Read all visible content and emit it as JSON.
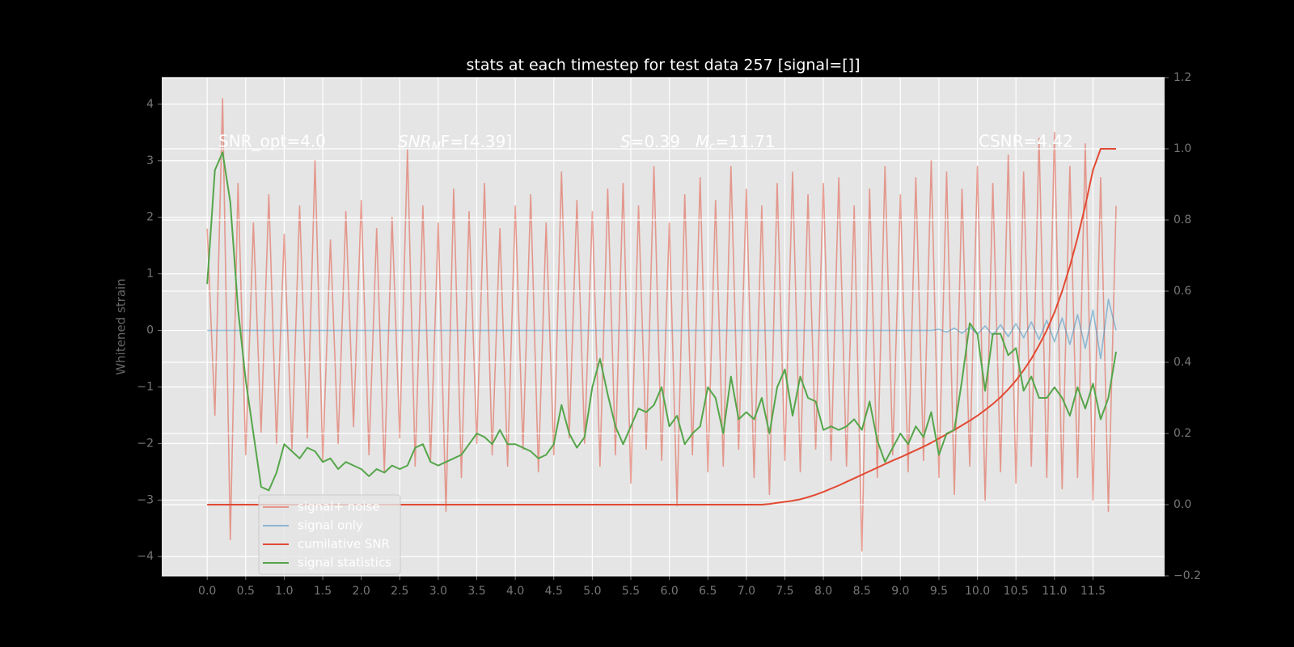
{
  "chart_data": {
    "type": "line",
    "title": "stats at each timestep for test data 257 [signal=[]]",
    "y_label": "Whitened strain",
    "annotations": [
      "SNR_opt=4.0",
      {
        "italic": "SNR",
        "sub": "M",
        "rest": "F=[4.39]"
      },
      {
        "italic": "S",
        "rest": "=0.39"
      },
      {
        "italic": "M",
        "sub": "c",
        "rest": "=11.71"
      },
      "CSNR=4.42"
    ],
    "x": [
      0,
      0.1,
      0.2,
      0.3,
      0.4,
      0.5,
      0.6,
      0.7,
      0.8,
      0.9,
      1,
      1.1,
      1.2,
      1.3,
      1.4,
      1.5,
      1.6,
      1.7,
      1.8,
      1.9,
      2,
      2.1,
      2.2,
      2.3,
      2.4,
      2.5,
      2.6,
      2.7,
      2.8,
      2.9,
      3,
      3.1,
      3.2,
      3.3,
      3.4,
      3.5,
      3.6,
      3.7,
      3.8,
      3.9,
      4,
      4.1,
      4.2,
      4.3,
      4.4,
      4.5,
      4.6,
      4.7,
      4.8,
      4.9,
      5,
      5.1,
      5.2,
      5.3,
      5.4,
      5.5,
      5.6,
      5.7,
      5.8,
      5.9,
      6,
      6.1,
      6.2,
      6.3,
      6.4,
      6.5,
      6.6,
      6.7,
      6.8,
      6.9,
      7,
      7.1,
      7.2,
      7.3,
      7.4,
      7.5,
      7.6,
      7.7,
      7.8,
      7.9,
      8,
      8.1,
      8.2,
      8.3,
      8.4,
      8.5,
      8.6,
      8.7,
      8.8,
      8.9,
      9,
      9.1,
      9.2,
      9.3,
      9.4,
      9.5,
      9.6,
      9.7,
      9.8,
      9.9,
      10,
      10.1,
      10.2,
      10.3,
      10.4,
      10.5,
      10.6,
      10.7,
      10.8,
      10.9,
      11,
      11.1,
      11.2,
      11.3,
      11.4,
      11.5,
      11.6,
      11.7,
      11.8
    ],
    "series": [
      {
        "name": "signal+ noise",
        "color": "#e24a33",
        "opacity": 0.5,
        "values": [
          1.8,
          -1.5,
          4.1,
          -3.7,
          2.6,
          -2.2,
          1.9,
          -1.8,
          2.4,
          -2.0,
          1.7,
          -2.1,
          2.2,
          -1.9,
          3.0,
          -2.3,
          1.6,
          -2.0,
          2.1,
          -1.7,
          2.3,
          -2.2,
          1.8,
          -2.5,
          2.0,
          -1.9,
          3.2,
          -2.4,
          2.2,
          -2.3,
          1.9,
          -3.2,
          2.5,
          -2.6,
          2.1,
          -2.0,
          2.6,
          -2.2,
          1.8,
          -2.4,
          2.2,
          -2.1,
          2.4,
          -2.5,
          1.9,
          -2.2,
          2.8,
          -1.9,
          2.3,
          -2.0,
          2.1,
          -2.4,
          2.5,
          -2.2,
          2.6,
          -2.7,
          2.2,
          -2.1,
          2.9,
          -2.3,
          1.9,
          -3.1,
          2.4,
          -2.2,
          2.7,
          -2.5,
          2.3,
          -2.4,
          2.9,
          -2.1,
          2.5,
          -2.6,
          2.2,
          -2.9,
          2.6,
          -2.3,
          2.8,
          -2.5,
          2.4,
          -2.1,
          2.6,
          -2.3,
          2.7,
          -2.4,
          2.2,
          -3.9,
          2.5,
          -2.6,
          2.9,
          -2.2,
          2.4,
          -2.5,
          2.7,
          -2.3,
          3.0,
          -2.6,
          2.8,
          -2.9,
          2.5,
          -2.4,
          2.9,
          -3.0,
          2.6,
          -2.5,
          3.1,
          -2.7,
          2.8,
          -2.4,
          3.4,
          -2.6,
          3.5,
          -2.8,
          2.9,
          -2.6,
          3.3,
          -3.0,
          2.7,
          -3.2,
          2.2
        ]
      },
      {
        "name": "signal only",
        "color": "#348abd",
        "opacity": 0.5,
        "values": [
          0,
          0,
          0,
          0,
          0,
          0,
          0,
          0,
          0,
          0,
          0,
          0,
          0,
          0,
          0,
          0,
          0,
          0,
          0,
          0,
          0,
          0,
          0,
          0,
          0,
          0,
          0,
          0,
          0,
          0,
          0,
          0,
          0,
          0,
          0,
          0,
          0,
          0,
          0,
          0,
          0,
          0,
          0,
          0,
          0,
          0,
          0,
          0,
          0,
          0,
          0,
          0,
          0,
          0,
          0,
          0,
          0,
          0,
          0,
          0,
          0,
          0,
          0,
          0,
          0,
          0,
          0,
          0,
          0,
          0,
          0,
          0,
          0,
          0,
          0,
          0,
          0,
          0,
          0,
          0,
          0,
          0,
          0,
          0,
          0,
          0,
          0,
          0,
          0,
          0,
          0,
          0,
          0,
          0,
          0,
          0.02,
          -0.03,
          0.04,
          -0.05,
          0.06,
          -0.07,
          0.08,
          -0.09,
          0.1,
          -0.11,
          0.12,
          -0.13,
          0.15,
          -0.16,
          0.18,
          -0.2,
          0.22,
          -0.25,
          0.28,
          -0.32,
          0.36,
          -0.5,
          0.55,
          0
        ]
      },
      {
        "name": "cumilative SNR",
        "color": "#e24a33",
        "opacity": 1,
        "axis": "y2",
        "values": [
          0,
          0,
          0,
          0,
          0,
          0,
          0,
          0,
          0,
          0,
          0,
          0,
          0,
          0,
          0,
          0,
          0,
          0,
          0,
          0,
          0,
          0,
          0,
          0,
          0,
          0,
          0,
          0,
          0,
          0,
          0,
          0,
          0,
          0,
          0,
          0,
          0,
          0,
          0,
          0,
          0,
          0,
          0,
          0,
          0,
          0,
          0,
          0,
          0,
          0,
          0,
          0,
          0,
          0,
          0,
          0,
          0,
          0,
          0,
          0,
          0,
          0,
          0,
          0,
          0,
          0,
          0,
          0,
          0,
          0,
          0,
          0,
          0,
          0.002,
          0.005,
          0.008,
          0.011,
          0.015,
          0.021,
          0.028,
          0.036,
          0.045,
          0.054,
          0.064,
          0.074,
          0.084,
          0.094,
          0.104,
          0.114,
          0.124,
          0.133,
          0.143,
          0.153,
          0.163,
          0.174,
          0.186,
          0.198,
          0.21,
          0.223,
          0.236,
          0.25,
          0.266,
          0.283,
          0.302,
          0.324,
          0.349,
          0.378,
          0.41,
          0.448,
          0.49,
          0.54,
          0.6,
          0.67,
          0.75,
          0.84,
          0.94,
          1.0,
          1.0,
          1.0
        ]
      },
      {
        "name": "signal statistics",
        "color": "#55a54a",
        "opacity": 1,
        "axis": "y2",
        "values": [
          0.62,
          0.94,
          0.99,
          0.85,
          0.55,
          0.35,
          0.2,
          0.05,
          0.04,
          0.09,
          0.17,
          0.15,
          0.13,
          0.16,
          0.15,
          0.12,
          0.13,
          0.1,
          0.12,
          0.11,
          0.1,
          0.08,
          0.1,
          0.09,
          0.11,
          0.1,
          0.11,
          0.16,
          0.17,
          0.12,
          0.11,
          0.12,
          0.13,
          0.14,
          0.17,
          0.2,
          0.19,
          0.17,
          0.21,
          0.17,
          0.17,
          0.16,
          0.15,
          0.13,
          0.14,
          0.17,
          0.28,
          0.2,
          0.16,
          0.19,
          0.33,
          0.41,
          0.31,
          0.22,
          0.17,
          0.22,
          0.27,
          0.26,
          0.28,
          0.33,
          0.22,
          0.25,
          0.17,
          0.2,
          0.22,
          0.33,
          0.3,
          0.2,
          0.36,
          0.24,
          0.26,
          0.24,
          0.3,
          0.2,
          0.33,
          0.38,
          0.25,
          0.36,
          0.3,
          0.29,
          0.21,
          0.22,
          0.21,
          0.22,
          0.24,
          0.21,
          0.29,
          0.18,
          0.12,
          0.16,
          0.2,
          0.17,
          0.22,
          0.19,
          0.26,
          0.14,
          0.2,
          0.21,
          0.35,
          0.51,
          0.48,
          0.32,
          0.48,
          0.48,
          0.42,
          0.44,
          0.32,
          0.36,
          0.3,
          0.3,
          0.33,
          0.3,
          0.25,
          0.33,
          0.27,
          0.34,
          0.24,
          0.3,
          0.43
        ]
      }
    ],
    "xlim": [
      -0.59,
      12.43
    ],
    "xticks": [
      {
        "value": 0,
        "label": "0.0"
      },
      {
        "value": 0.5,
        "label": "0.5"
      },
      {
        "value": 1,
        "label": "1.0"
      },
      {
        "value": 1.5,
        "label": "1.5"
      },
      {
        "value": 2,
        "label": "2.0"
      },
      {
        "value": 2.5,
        "label": "2.5"
      },
      {
        "value": 3,
        "label": "3.0"
      },
      {
        "value": 3.5,
        "label": "3.5"
      },
      {
        "value": 4,
        "label": "4.0"
      },
      {
        "value": 4.5,
        "label": "4.5"
      },
      {
        "value": 5,
        "label": "5.0"
      },
      {
        "value": 5.5,
        "label": "5.5"
      },
      {
        "value": 6,
        "label": "6.0"
      },
      {
        "value": 6.5,
        "label": "6.5"
      },
      {
        "value": 7,
        "label": "7.0"
      },
      {
        "value": 7.5,
        "label": "7.5"
      },
      {
        "value": 8,
        "label": "8.0"
      },
      {
        "value": 8.5,
        "label": "8.5"
      },
      {
        "value": 9,
        "label": "9.0"
      },
      {
        "value": 9.5,
        "label": "9.5"
      },
      {
        "value": 10,
        "label": "10.0"
      },
      {
        "value": 10.5,
        "label": "10.5"
      },
      {
        "value": 11,
        "label": "11.0"
      },
      {
        "value": 11.5,
        "label": "11.5"
      }
    ],
    "ylim": [
      -4.34,
      4.47
    ],
    "yticks": [
      {
        "value": -4,
        "label": "−4"
      },
      {
        "value": -3,
        "label": "−3"
      },
      {
        "value": -2,
        "label": "−2"
      },
      {
        "value": -1,
        "label": "−1"
      },
      0,
      1,
      2,
      3,
      4
    ],
    "y2lim": [
      -0.2,
      1.2
    ],
    "y2ticks": [
      {
        "value": -0.2,
        "label": "−0.2"
      },
      {
        "value": 0,
        "label": "0.0"
      },
      {
        "value": 0.2,
        "label": "0.2"
      },
      {
        "value": 0.4,
        "label": "0.4"
      },
      {
        "value": 0.6,
        "label": "0.6"
      },
      {
        "value": 0.8,
        "label": "0.8"
      },
      {
        "value": 1,
        "label": "1.0"
      },
      {
        "value": 1.2,
        "label": "1.2"
      }
    ],
    "grid": true,
    "legend_loc": "lower left"
  }
}
